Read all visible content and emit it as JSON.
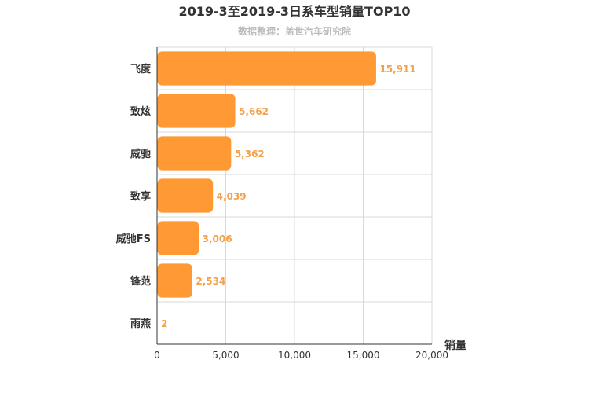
{
  "chart_data": {
    "type": "bar",
    "orientation": "horizontal",
    "title": "2019-3至2019-3日系车型销量TOP10",
    "subtitle": "数据整理：盖世汽车研究院",
    "xlabel": "销量",
    "ylabel": "",
    "categories": [
      "飞度",
      "致炫",
      "威驰",
      "致享",
      "威驰FS",
      "锋范",
      "雨燕"
    ],
    "values": [
      15911,
      5662,
      5362,
      4039,
      3006,
      2534,
      2
    ],
    "value_labels": [
      "15,911",
      "5,662",
      "5,362",
      "4,039",
      "3,006",
      "2,534",
      "2"
    ],
    "xlim": [
      0,
      20000
    ],
    "x_ticks": [
      "0",
      "5,000",
      "10,000",
      "15,000",
      "20,000"
    ],
    "grid": true,
    "bar_color": "#ff9933",
    "label_color": "#f5a14a"
  }
}
